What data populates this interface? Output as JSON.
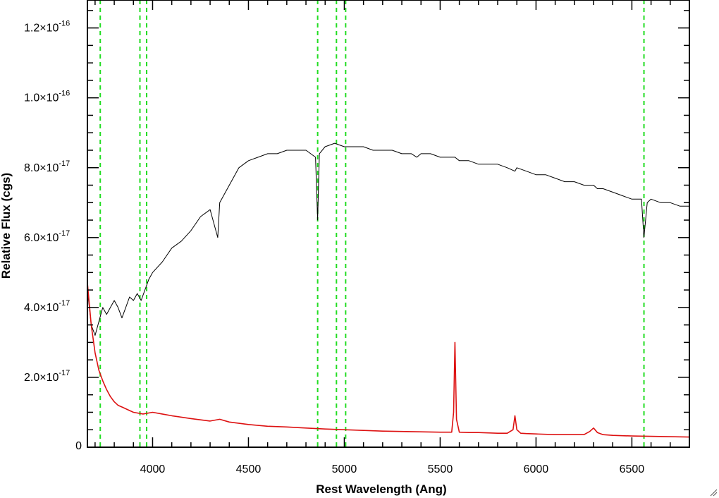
{
  "chart_data": {
    "type": "line",
    "title": "",
    "xlabel": "Rest Wavelength (Ang)",
    "ylabel": "Relative Flux (cgs)",
    "xlim": [
      3660,
      6800
    ],
    "ylim": [
      0,
      1.28e-16
    ],
    "x_ticks": [
      {
        "value": 4000,
        "label": "4000"
      },
      {
        "value": 4500,
        "label": "4500"
      },
      {
        "value": 5000,
        "label": "5000"
      },
      {
        "value": 5500,
        "label": "5500"
      },
      {
        "value": 6000,
        "label": "6000"
      },
      {
        "value": 6500,
        "label": "6500"
      }
    ],
    "y_ticks": [
      {
        "value": 0,
        "mantissa": "0",
        "exponent": ""
      },
      {
        "value": 2e-17,
        "mantissa": "2.0×10",
        "exponent": "-17"
      },
      {
        "value": 4e-17,
        "mantissa": "4.0×10",
        "exponent": "-17"
      },
      {
        "value": 6e-17,
        "mantissa": "6.0×10",
        "exponent": "-17"
      },
      {
        "value": 8e-17,
        "mantissa": "8.0×10",
        "exponent": "-17"
      },
      {
        "value": 1e-16,
        "mantissa": "1.0×10",
        "exponent": "-16"
      },
      {
        "value": 1.2e-16,
        "mantissa": "1.2×10",
        "exponent": "-16"
      }
    ],
    "grid": false,
    "reference_lines": {
      "color": "#22dd22",
      "style": "dashed",
      "x": [
        3727,
        3934,
        3969,
        4861,
        4959,
        5007,
        6563
      ]
    },
    "series": [
      {
        "color": "#000000",
        "x": [
          3660,
          3680,
          3700,
          3720,
          3740,
          3760,
          3780,
          3800,
          3820,
          3840,
          3860,
          3880,
          3900,
          3920,
          3940,
          3960,
          3980,
          4000,
          4050,
          4100,
          4150,
          4200,
          4250,
          4300,
          4340,
          4350,
          4400,
          4450,
          4500,
          4550,
          4600,
          4650,
          4700,
          4750,
          4800,
          4850,
          4861,
          4870,
          4900,
          4950,
          5000,
          5050,
          5100,
          5150,
          5200,
          5250,
          5300,
          5350,
          5378,
          5400,
          5450,
          5500,
          5550,
          5577,
          5600,
          5650,
          5700,
          5750,
          5800,
          5850,
          5890,
          5900,
          5950,
          6000,
          6050,
          6100,
          6150,
          6200,
          6250,
          6300,
          6320,
          6350,
          6400,
          6450,
          6500,
          6550,
          6563,
          6580,
          6600,
          6650,
          6700,
          6750,
          6800
        ],
        "y": [
          4.5e-17,
          3.5e-17,
          3.2e-17,
          3.6e-17,
          4e-17,
          3.8e-17,
          4e-17,
          4.2e-17,
          4e-17,
          3.7e-17,
          4e-17,
          4.3e-17,
          4.2e-17,
          4.4e-17,
          4.2e-17,
          4.5e-17,
          4.8e-17,
          5e-17,
          5.3e-17,
          5.7e-17,
          5.9e-17,
          6.2e-17,
          6.6e-17,
          6.8e-17,
          6e-17,
          7e-17,
          7.5e-17,
          8e-17,
          8.2e-17,
          8.3e-17,
          8.4e-17,
          8.4e-17,
          8.5e-17,
          8.5e-17,
          8.5e-17,
          8.3e-17,
          6.5e-17,
          8.4e-17,
          8.6e-17,
          8.7e-17,
          8.6e-17,
          8.6e-17,
          8.6e-17,
          8.5e-17,
          8.5e-17,
          8.5e-17,
          8.4e-17,
          8.4e-17,
          8.3e-17,
          8.4e-17,
          8.4e-17,
          8.3e-17,
          8.3e-17,
          8.3e-17,
          8.2e-17,
          8.2e-17,
          8.1e-17,
          8.1e-17,
          8.1e-17,
          8e-17,
          7.9e-17,
          8e-17,
          7.9e-17,
          7.8e-17,
          7.8e-17,
          7.7e-17,
          7.6e-17,
          7.6e-17,
          7.5e-17,
          7.5e-17,
          7.4e-17,
          7.4e-17,
          7.3e-17,
          7.2e-17,
          7.1e-17,
          7.1e-17,
          6e-17,
          7e-17,
          7.1e-17,
          7e-17,
          7e-17,
          6.9e-17,
          6.9e-17
        ]
      },
      {
        "color": "#dd1111",
        "x": [
          3660,
          3680,
          3700,
          3720,
          3740,
          3760,
          3780,
          3800,
          3820,
          3840,
          3860,
          3880,
          3900,
          3950,
          4000,
          4050,
          4100,
          4200,
          4300,
          4350,
          4400,
          4500,
          4600,
          4700,
          4800,
          4900,
          5000,
          5100,
          5200,
          5300,
          5400,
          5500,
          5560,
          5570,
          5577,
          5585,
          5600,
          5650,
          5700,
          5750,
          5800,
          5850,
          5880,
          5890,
          5900,
          5920,
          5950,
          6000,
          6100,
          6200,
          6250,
          6280,
          6300,
          6320,
          6350,
          6400,
          6500,
          6600,
          6700,
          6800
        ],
        "y": [
          4.7e-17,
          3.5e-17,
          2.7e-17,
          2.2e-17,
          1.9e-17,
          1.65e-17,
          1.45e-17,
          1.3e-17,
          1.2e-17,
          1.15e-17,
          1.1e-17,
          1.05e-17,
          1e-17,
          9.5e-18,
          1e-17,
          9.5e-18,
          9e-18,
          8.2e-18,
          7.5e-18,
          8e-18,
          7.2e-18,
          6.5e-18,
          6e-18,
          5.8e-18,
          5.5e-18,
          5.2e-18,
          5e-18,
          4.8e-18,
          4.6e-18,
          4.5e-18,
          4.4e-18,
          4.3e-18,
          4.3e-18,
          1e-17,
          3e-17,
          8e-18,
          4.3e-18,
          4.2e-18,
          4.2e-18,
          4.1e-18,
          4e-18,
          4e-18,
          5e-18,
          9e-18,
          5e-18,
          4e-18,
          3.9e-18,
          3.8e-18,
          3.6e-18,
          3.6e-18,
          3.6e-18,
          4.5e-18,
          5.5e-18,
          4.2e-18,
          3.6e-18,
          3.4e-18,
          3.2e-18,
          3.1e-18,
          3e-18,
          2.9e-18
        ]
      }
    ]
  }
}
